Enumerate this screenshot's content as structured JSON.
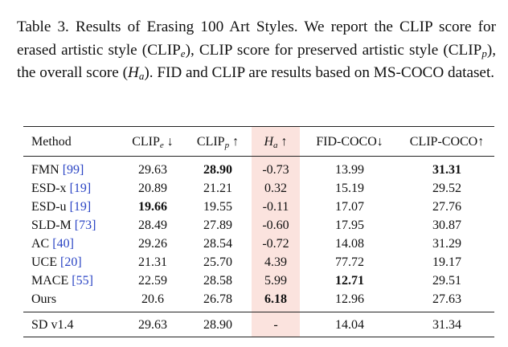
{
  "caption": {
    "part1": "Table 3. Results of Erasing 100 Art Styles. We report the CLIP score for erased artistic style (CLIP",
    "sub_e": "e",
    "part2": "), CLIP score for preserved artistic style (CLIP",
    "sub_p": "p",
    "part3": "), the overall score (",
    "h": "H",
    "sub_a": "a",
    "part4": "). FID and CLIP are results based on MS-COCO dataset."
  },
  "table": {
    "headers": {
      "method": "Method",
      "clip_e_base": "CLIP",
      "clip_e_sub": "e",
      "clip_e_arrow": " ↓",
      "clip_p_base": "CLIP",
      "clip_p_sub": "p",
      "clip_p_arrow": " ↑",
      "h_base": "H",
      "h_sub": "a",
      "h_arrow": " ↑",
      "fid": "FID-COCO↓",
      "clip_coco": "CLIP-COCO↑"
    },
    "rows": [
      {
        "method": "FMN",
        "ref": "[99]",
        "clip_e": "29.63",
        "clip_p": "28.90",
        "h": "-0.73",
        "fid": "13.99",
        "clip_coco": "31.31"
      },
      {
        "method": "ESD-x",
        "ref": "[19]",
        "clip_e": "20.89",
        "clip_p": "21.21",
        "h": "0.32",
        "fid": "15.19",
        "clip_coco": "29.52"
      },
      {
        "method": "ESD-u",
        "ref": "[19]",
        "clip_e": "19.66",
        "clip_p": "19.55",
        "h": "-0.11",
        "fid": "17.07",
        "clip_coco": "27.76"
      },
      {
        "method": "SLD-M",
        "ref": "[73]",
        "clip_e": "28.49",
        "clip_p": "27.89",
        "h": "-0.60",
        "fid": "17.95",
        "clip_coco": "30.87"
      },
      {
        "method": "AC",
        "ref": "[40]",
        "clip_e": "29.26",
        "clip_p": "28.54",
        "h": "-0.72",
        "fid": "14.08",
        "clip_coco": "31.29"
      },
      {
        "method": "UCE",
        "ref": "[20]",
        "clip_e": "21.31",
        "clip_p": "25.70",
        "h": "4.39",
        "fid": "77.72",
        "clip_coco": "19.17"
      },
      {
        "method": "MACE",
        "ref": "[55]",
        "clip_e": "22.59",
        "clip_p": "28.58",
        "h": "5.99",
        "fid": "12.71",
        "clip_coco": "29.51"
      },
      {
        "method": "Ours",
        "ref": "",
        "clip_e": "20.6",
        "clip_p": "26.78",
        "h": "6.18",
        "fid": "12.96",
        "clip_coco": "27.63"
      }
    ],
    "baseline": {
      "method": "SD v1.4",
      "clip_e": "29.63",
      "clip_p": "28.90",
      "h": "-",
      "fid": "14.04",
      "clip_coco": "31.34"
    },
    "highlight_color": "#fbe3de",
    "ref_color": "#2a44c4"
  }
}
